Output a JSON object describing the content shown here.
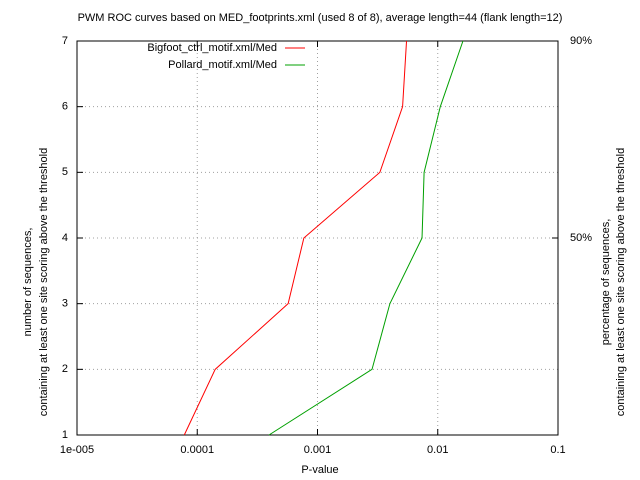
{
  "chart_data": {
    "type": "line",
    "title": "PWM ROC curves based on MED_footprints.xml (used 8 of 8), average length=44 (flank length=12)",
    "xlabel": "P-value",
    "ylabel": [
      "number of sequences,",
      "containing at least one site scoring above the threshold"
    ],
    "y2label": [
      "percentage of sequences,",
      "containing at least one site scoring above the threshold"
    ],
    "xlog": true,
    "xlim": [
      1e-05,
      0.1
    ],
    "xticks": [
      {
        "value": 1e-05,
        "label": "1e-005"
      },
      0.0001,
      0.001,
      0.01,
      0.1
    ],
    "ylim": [
      1,
      7
    ],
    "yticks": [
      1,
      2,
      3,
      4,
      5,
      6,
      7
    ],
    "y2lim": [
      10,
      90
    ],
    "y2ticks": [
      {
        "value": 50,
        "label": "50%"
      },
      {
        "value": 90,
        "label": "90%"
      }
    ],
    "grid": true,
    "legend": "top-left",
    "series": [
      {
        "name": "Bigfoot_ctrl_motif.xml/Med",
        "color": "#ff0000",
        "x": [
          7.8e-05,
          0.000141,
          0.00057,
          0.00077,
          0.0033,
          0.0051,
          0.0055
        ],
        "values": [
          1,
          2,
          3,
          4,
          5,
          6,
          7
        ]
      },
      {
        "name": "Pollard_motif.xml/Med",
        "color": "#00a000",
        "x": [
          0.000395,
          0.00284,
          0.004,
          0.0074,
          0.0077,
          0.0105,
          0.0162
        ],
        "values": [
          1,
          2,
          3,
          4,
          5,
          6,
          7
        ]
      }
    ]
  }
}
